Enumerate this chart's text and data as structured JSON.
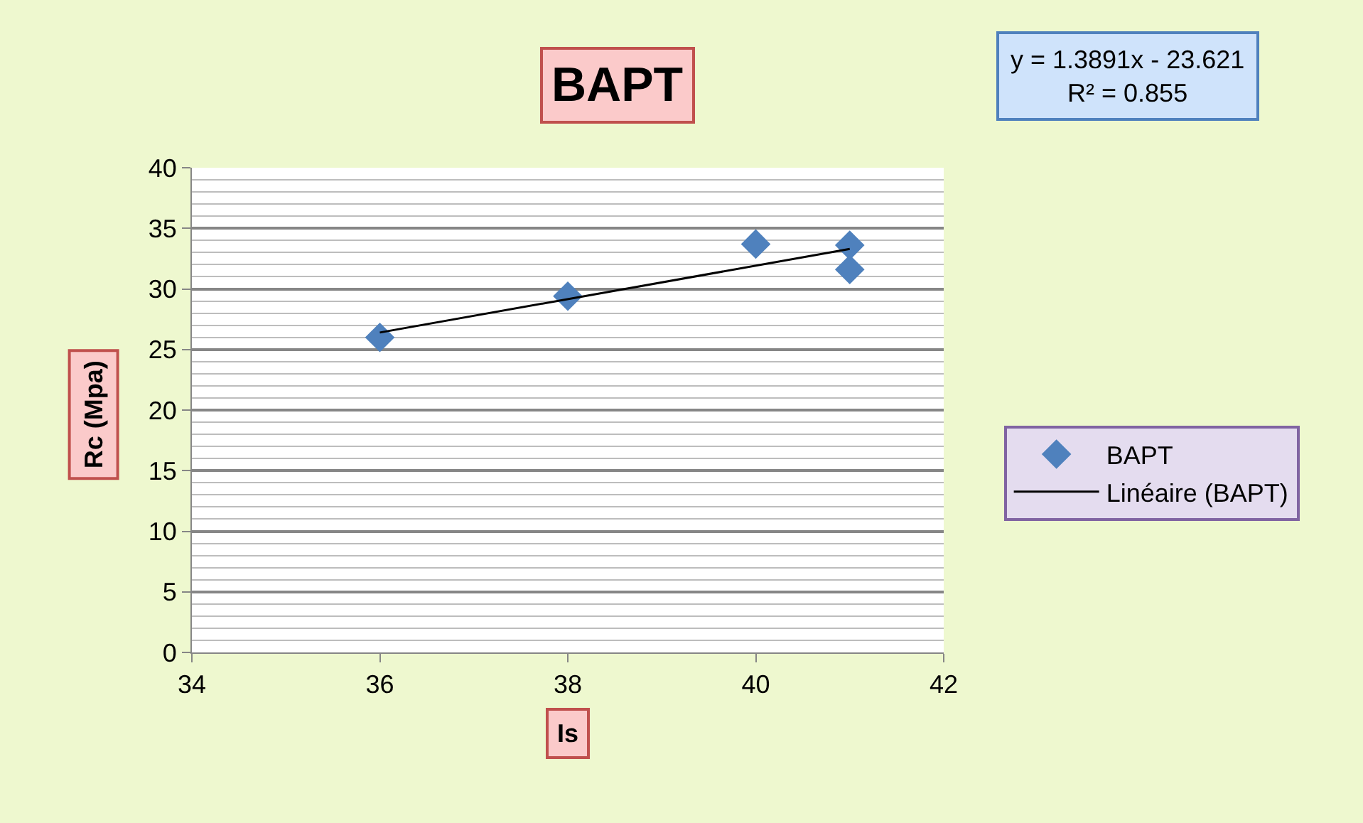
{
  "chart_data": {
    "type": "scatter",
    "title": "BAPT",
    "xlabel": "Is",
    "ylabel": "Rc (Mpa)",
    "x": [
      36,
      38,
      40,
      41,
      41
    ],
    "series": [
      {
        "name": "BAPT",
        "color": "#4f81bd",
        "marker": "diamond",
        "values": [
          26,
          29.4,
          33.7,
          33.6,
          31.6
        ]
      },
      {
        "name": "Linéaire (BAPT)",
        "type": "line",
        "color": "#000000",
        "x": [
          36,
          41
        ],
        "values": [
          26.4,
          33.3
        ]
      }
    ],
    "annotations": [
      "y = 1.3891x - 23.621\nR² = 0.855"
    ],
    "xlim": [
      34,
      42
    ],
    "xticks": [
      34,
      36,
      38,
      40,
      42
    ],
    "ylim": [
      0,
      40
    ],
    "yticks": [
      0,
      5,
      10,
      15,
      20,
      25,
      30,
      35,
      40
    ],
    "grid": "y",
    "legend": "right"
  }
}
